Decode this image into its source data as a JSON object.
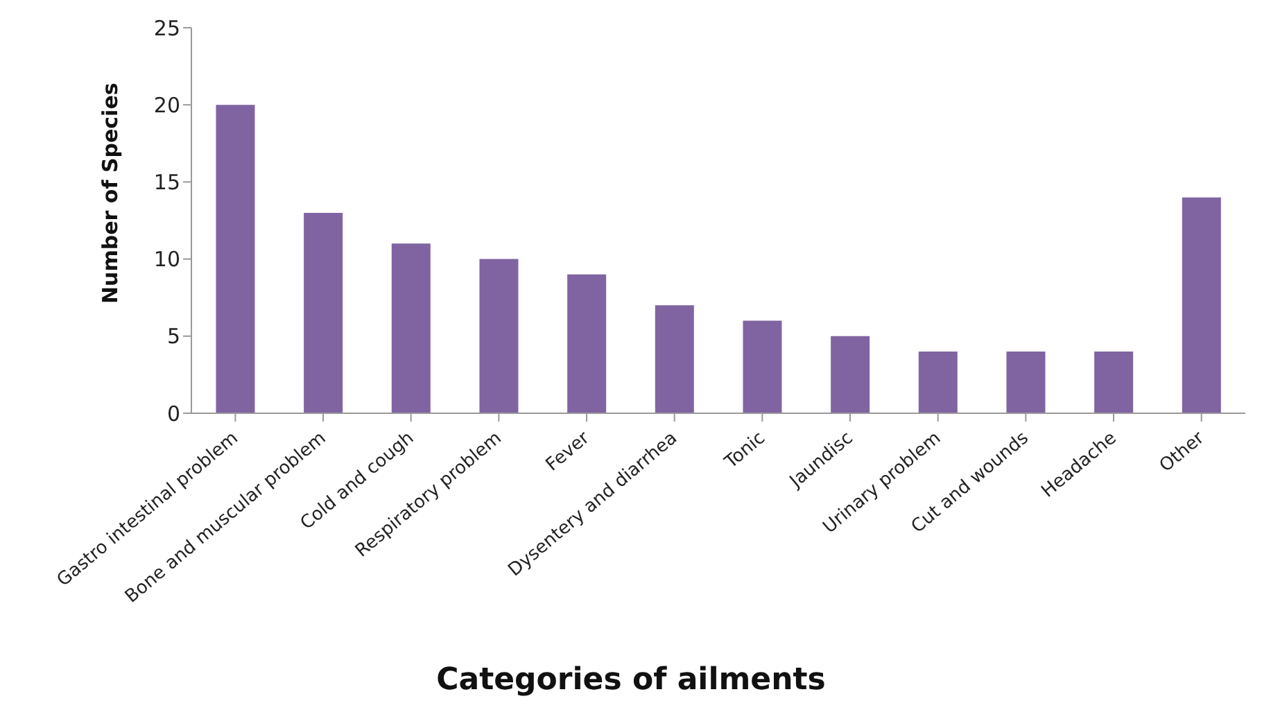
{
  "chart_data": {
    "type": "bar",
    "xlabel": "Categories of ailments",
    "ylabel": "Number of Species",
    "categories": [
      "Gastro intestinal problem",
      "Bone and muscular problem",
      "Cold and cough",
      "Respiratory problem",
      "Fever",
      "Dysentery and diarrhea",
      "Tonic",
      "Jaundisc",
      "Urinary problem",
      "Cut and wounds",
      "Headache",
      "Other"
    ],
    "values": [
      20,
      13,
      11,
      10,
      9,
      7,
      6,
      5,
      4,
      4,
      4,
      14
    ],
    "color": "#8064a2",
    "ylim": [
      0,
      25
    ],
    "yticks": [
      0,
      5,
      10,
      15,
      20,
      25
    ],
    "grid": false,
    "legend": false
  }
}
